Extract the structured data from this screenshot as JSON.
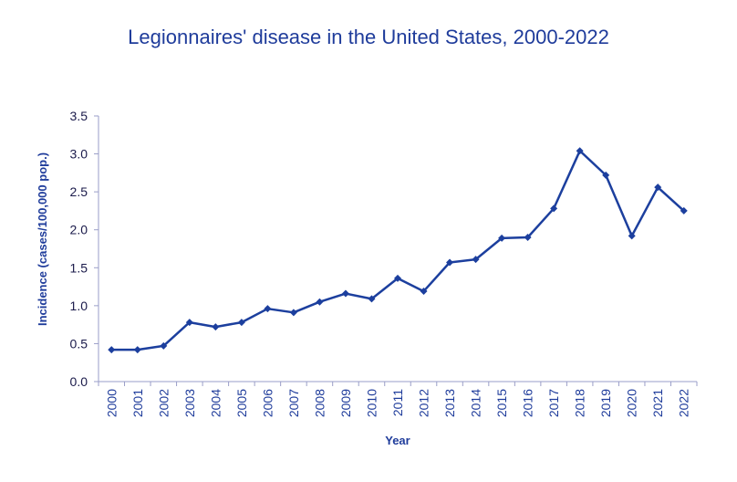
{
  "colors": {
    "title": "#1f3c9b",
    "series": "#1c3f9e",
    "axis": "#9a9ec8",
    "tick_text": "#1a1a4a"
  },
  "chart_data": {
    "type": "line",
    "title": "Legionnaires' disease in the United States, 2000-2022",
    "xlabel": "Year",
    "ylabel": "Incidence (cases/100,000 pop.)",
    "ylim": [
      0,
      3.5
    ],
    "yticks": [
      "0.0",
      "0.5",
      "1.0",
      "1.5",
      "2.0",
      "2.5",
      "3.0",
      "3.5"
    ],
    "categories": [
      "2000",
      "2001",
      "2002",
      "2003",
      "2004",
      "2005",
      "2006",
      "2007",
      "2008",
      "2009",
      "2010",
      "2011",
      "2012",
      "2013",
      "2014",
      "2015",
      "2016",
      "2017",
      "2018",
      "2019",
      "2020",
      "2021",
      "2022"
    ],
    "series": [
      {
        "name": "Incidence",
        "values": [
          0.42,
          0.42,
          0.47,
          0.78,
          0.72,
          0.78,
          0.96,
          0.91,
          1.05,
          1.16,
          1.09,
          1.36,
          1.19,
          1.57,
          1.61,
          1.89,
          1.9,
          2.28,
          3.04,
          2.72,
          1.92,
          2.56,
          2.25
        ]
      }
    ]
  }
}
